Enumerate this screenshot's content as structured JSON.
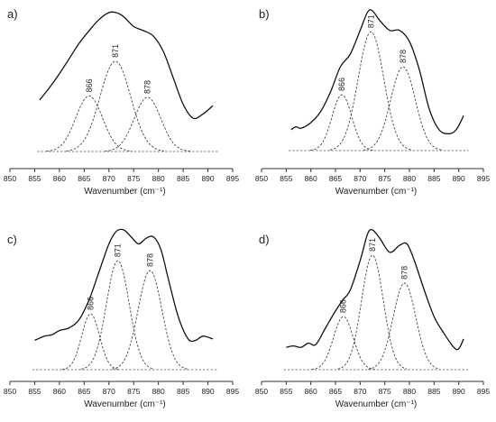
{
  "chart_data": [
    {
      "panel_label": "a)",
      "type": "line",
      "xlabel": "Wavenumber (cm⁻¹)",
      "xlim": [
        850,
        895
      ],
      "xticks": [
        850,
        855,
        860,
        865,
        870,
        875,
        880,
        885,
        890,
        895
      ],
      "observed": {
        "x": [
          856,
          858,
          860,
          862,
          864,
          866,
          868,
          870,
          871.5,
          873,
          875,
          877,
          879,
          881,
          883,
          885,
          887,
          889,
          891
        ],
        "y": [
          0.37,
          0.46,
          0.56,
          0.67,
          0.78,
          0.87,
          0.95,
          1.0,
          1.0,
          0.97,
          0.9,
          0.87,
          0.83,
          0.72,
          0.53,
          0.34,
          0.24,
          0.27,
          0.33
        ]
      },
      "peaks": [
        {
          "label": "866",
          "center": 866,
          "height": 0.4,
          "width": 2.7
        },
        {
          "label": "871",
          "center": 871.3,
          "height": 0.65,
          "width": 3.1
        },
        {
          "label": "878",
          "center": 877.8,
          "height": 0.39,
          "width": 2.7
        }
      ]
    },
    {
      "panel_label": "b)",
      "type": "line",
      "xlabel": "Wavenumber (cm⁻¹)",
      "xlim": [
        850,
        895
      ],
      "xticks": [
        850,
        855,
        860,
        865,
        870,
        875,
        880,
        885,
        890,
        895
      ],
      "observed": {
        "x": [
          856,
          857,
          858,
          860,
          862,
          864,
          866,
          868,
          870,
          871.5,
          872.5,
          874,
          876,
          878,
          880,
          882,
          884,
          886,
          888,
          889.5,
          891
        ],
        "y": [
          0.15,
          0.17,
          0.16,
          0.2,
          0.28,
          0.42,
          0.6,
          0.69,
          0.86,
          0.99,
          1.0,
          0.93,
          0.86,
          0.86,
          0.78,
          0.58,
          0.3,
          0.15,
          0.12,
          0.15,
          0.25
        ]
      },
      "peaks": [
        {
          "label": "866",
          "center": 866.3,
          "height": 0.4,
          "width": 2.0
        },
        {
          "label": "871",
          "center": 872.2,
          "height": 0.85,
          "width": 2.6
        },
        {
          "label": "878",
          "center": 878.7,
          "height": 0.6,
          "width": 2.5
        }
      ]
    },
    {
      "panel_label": "c)",
      "type": "line",
      "xlabel": "Wavenumber (cm⁻¹)",
      "xlim": [
        850,
        895
      ],
      "xticks": [
        850,
        855,
        860,
        865,
        870,
        875,
        880,
        885,
        890,
        895
      ],
      "observed": {
        "x": [
          855,
          857,
          858.5,
          860,
          862,
          864,
          866,
          868,
          870,
          871.5,
          873,
          874.5,
          876,
          877.5,
          879,
          880.5,
          882,
          884,
          886,
          887.5,
          889,
          891
        ],
        "y": [
          0.21,
          0.24,
          0.25,
          0.28,
          0.3,
          0.36,
          0.5,
          0.7,
          0.9,
          0.99,
          1.0,
          0.95,
          0.9,
          0.94,
          0.95,
          0.86,
          0.65,
          0.38,
          0.22,
          0.21,
          0.24,
          0.22
        ]
      },
      "peaks": [
        {
          "label": "866",
          "center": 866.3,
          "height": 0.4,
          "width": 1.8
        },
        {
          "label": "871",
          "center": 871.8,
          "height": 0.78,
          "width": 2.3
        },
        {
          "label": "878",
          "center": 878.3,
          "height": 0.71,
          "width": 2.4
        }
      ]
    },
    {
      "panel_label": "d)",
      "type": "line",
      "xlabel": "Wavenumber (cm⁻¹)",
      "xlim": [
        850,
        895
      ],
      "xticks": [
        850,
        855,
        860,
        865,
        870,
        875,
        880,
        885,
        890,
        895
      ],
      "observed": {
        "x": [
          855,
          856.5,
          858,
          859.5,
          861,
          863,
          865,
          866.5,
          868,
          870,
          871.5,
          872.5,
          874,
          876,
          878,
          879.5,
          881,
          883,
          885,
          887,
          889,
          890,
          891
        ],
        "y": [
          0.16,
          0.17,
          0.16,
          0.19,
          0.18,
          0.3,
          0.42,
          0.5,
          0.57,
          0.78,
          0.97,
          1.0,
          0.94,
          0.84,
          0.89,
          0.9,
          0.78,
          0.57,
          0.38,
          0.26,
          0.16,
          0.15,
          0.22
        ]
      },
      "peaks": [
        {
          "label": "866",
          "center": 866.6,
          "height": 0.38,
          "width": 2.0
        },
        {
          "label": "871",
          "center": 872.5,
          "height": 0.82,
          "width": 2.2
        },
        {
          "label": "878",
          "center": 879.0,
          "height": 0.62,
          "width": 2.3
        }
      ]
    }
  ]
}
